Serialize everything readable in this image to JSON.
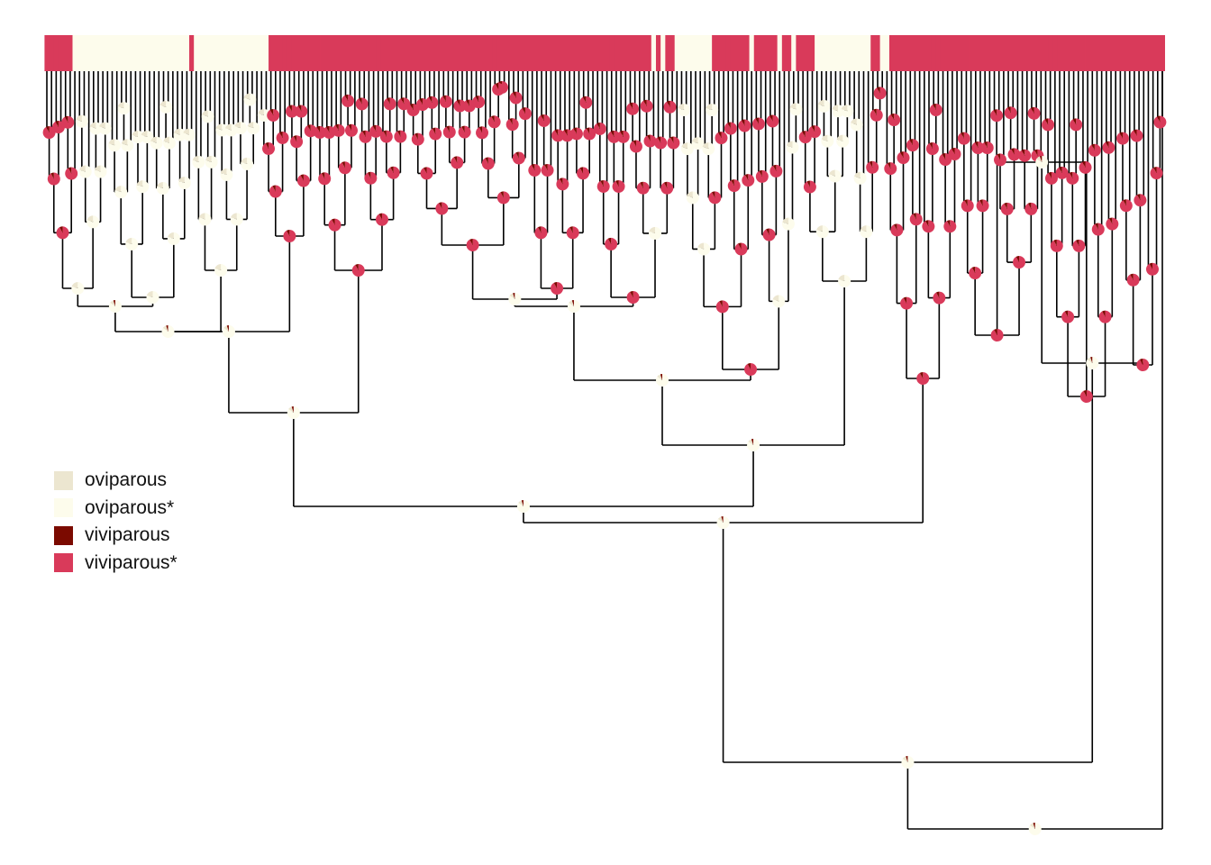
{
  "states": [
    {
      "key": "oviparous",
      "label": "oviparous",
      "color": "#ECE6D0"
    },
    {
      "key": "oviparous_star",
      "label": "oviparous*",
      "color": "#FDFCEC"
    },
    {
      "key": "viviparous",
      "label": "viviparous",
      "color": "#7B0A00"
    },
    {
      "key": "viviparous_star",
      "label": "viviparous*",
      "color": "#D93A5A"
    }
  ],
  "tip_state_blocks": [
    {
      "from": 0.0,
      "to": 0.025,
      "state": "viviparous_star"
    },
    {
      "from": 0.025,
      "to": 0.128,
      "state": "oviparous_star"
    },
    {
      "from": 0.128,
      "to": 0.133,
      "state": "viviparous_star"
    },
    {
      "from": 0.133,
      "to": 0.2,
      "state": "oviparous_star"
    },
    {
      "from": 0.2,
      "to": 0.54,
      "state": "viviparous_star"
    },
    {
      "from": 0.54,
      "to": 0.545,
      "state": "oviparous_star"
    },
    {
      "from": 0.545,
      "to": 0.551,
      "state": "viviparous_star"
    },
    {
      "from": 0.551,
      "to": 0.556,
      "state": "oviparous_star"
    },
    {
      "from": 0.556,
      "to": 0.562,
      "state": "viviparous_star"
    },
    {
      "from": 0.562,
      "to": 0.598,
      "state": "oviparous_star"
    },
    {
      "from": 0.598,
      "to": 0.63,
      "state": "viviparous_star"
    },
    {
      "from": 0.63,
      "to": 0.633,
      "state": "oviparous_star"
    },
    {
      "from": 0.633,
      "to": 0.655,
      "state": "viviparous_star"
    },
    {
      "from": 0.655,
      "to": 0.66,
      "state": "oviparous_star"
    },
    {
      "from": 0.66,
      "to": 0.668,
      "state": "viviparous_star"
    },
    {
      "from": 0.668,
      "to": 0.672,
      "state": "oviparous_star"
    },
    {
      "from": 0.672,
      "to": 0.69,
      "state": "viviparous_star"
    },
    {
      "from": 0.69,
      "to": 0.738,
      "state": "oviparous_star"
    },
    {
      "from": 0.738,
      "to": 0.745,
      "state": "viviparous_star"
    },
    {
      "from": 0.745,
      "to": 0.754,
      "state": "oviparous_star"
    },
    {
      "from": 0.754,
      "to": 1.0,
      "state": "viviparous_star"
    }
  ]
}
